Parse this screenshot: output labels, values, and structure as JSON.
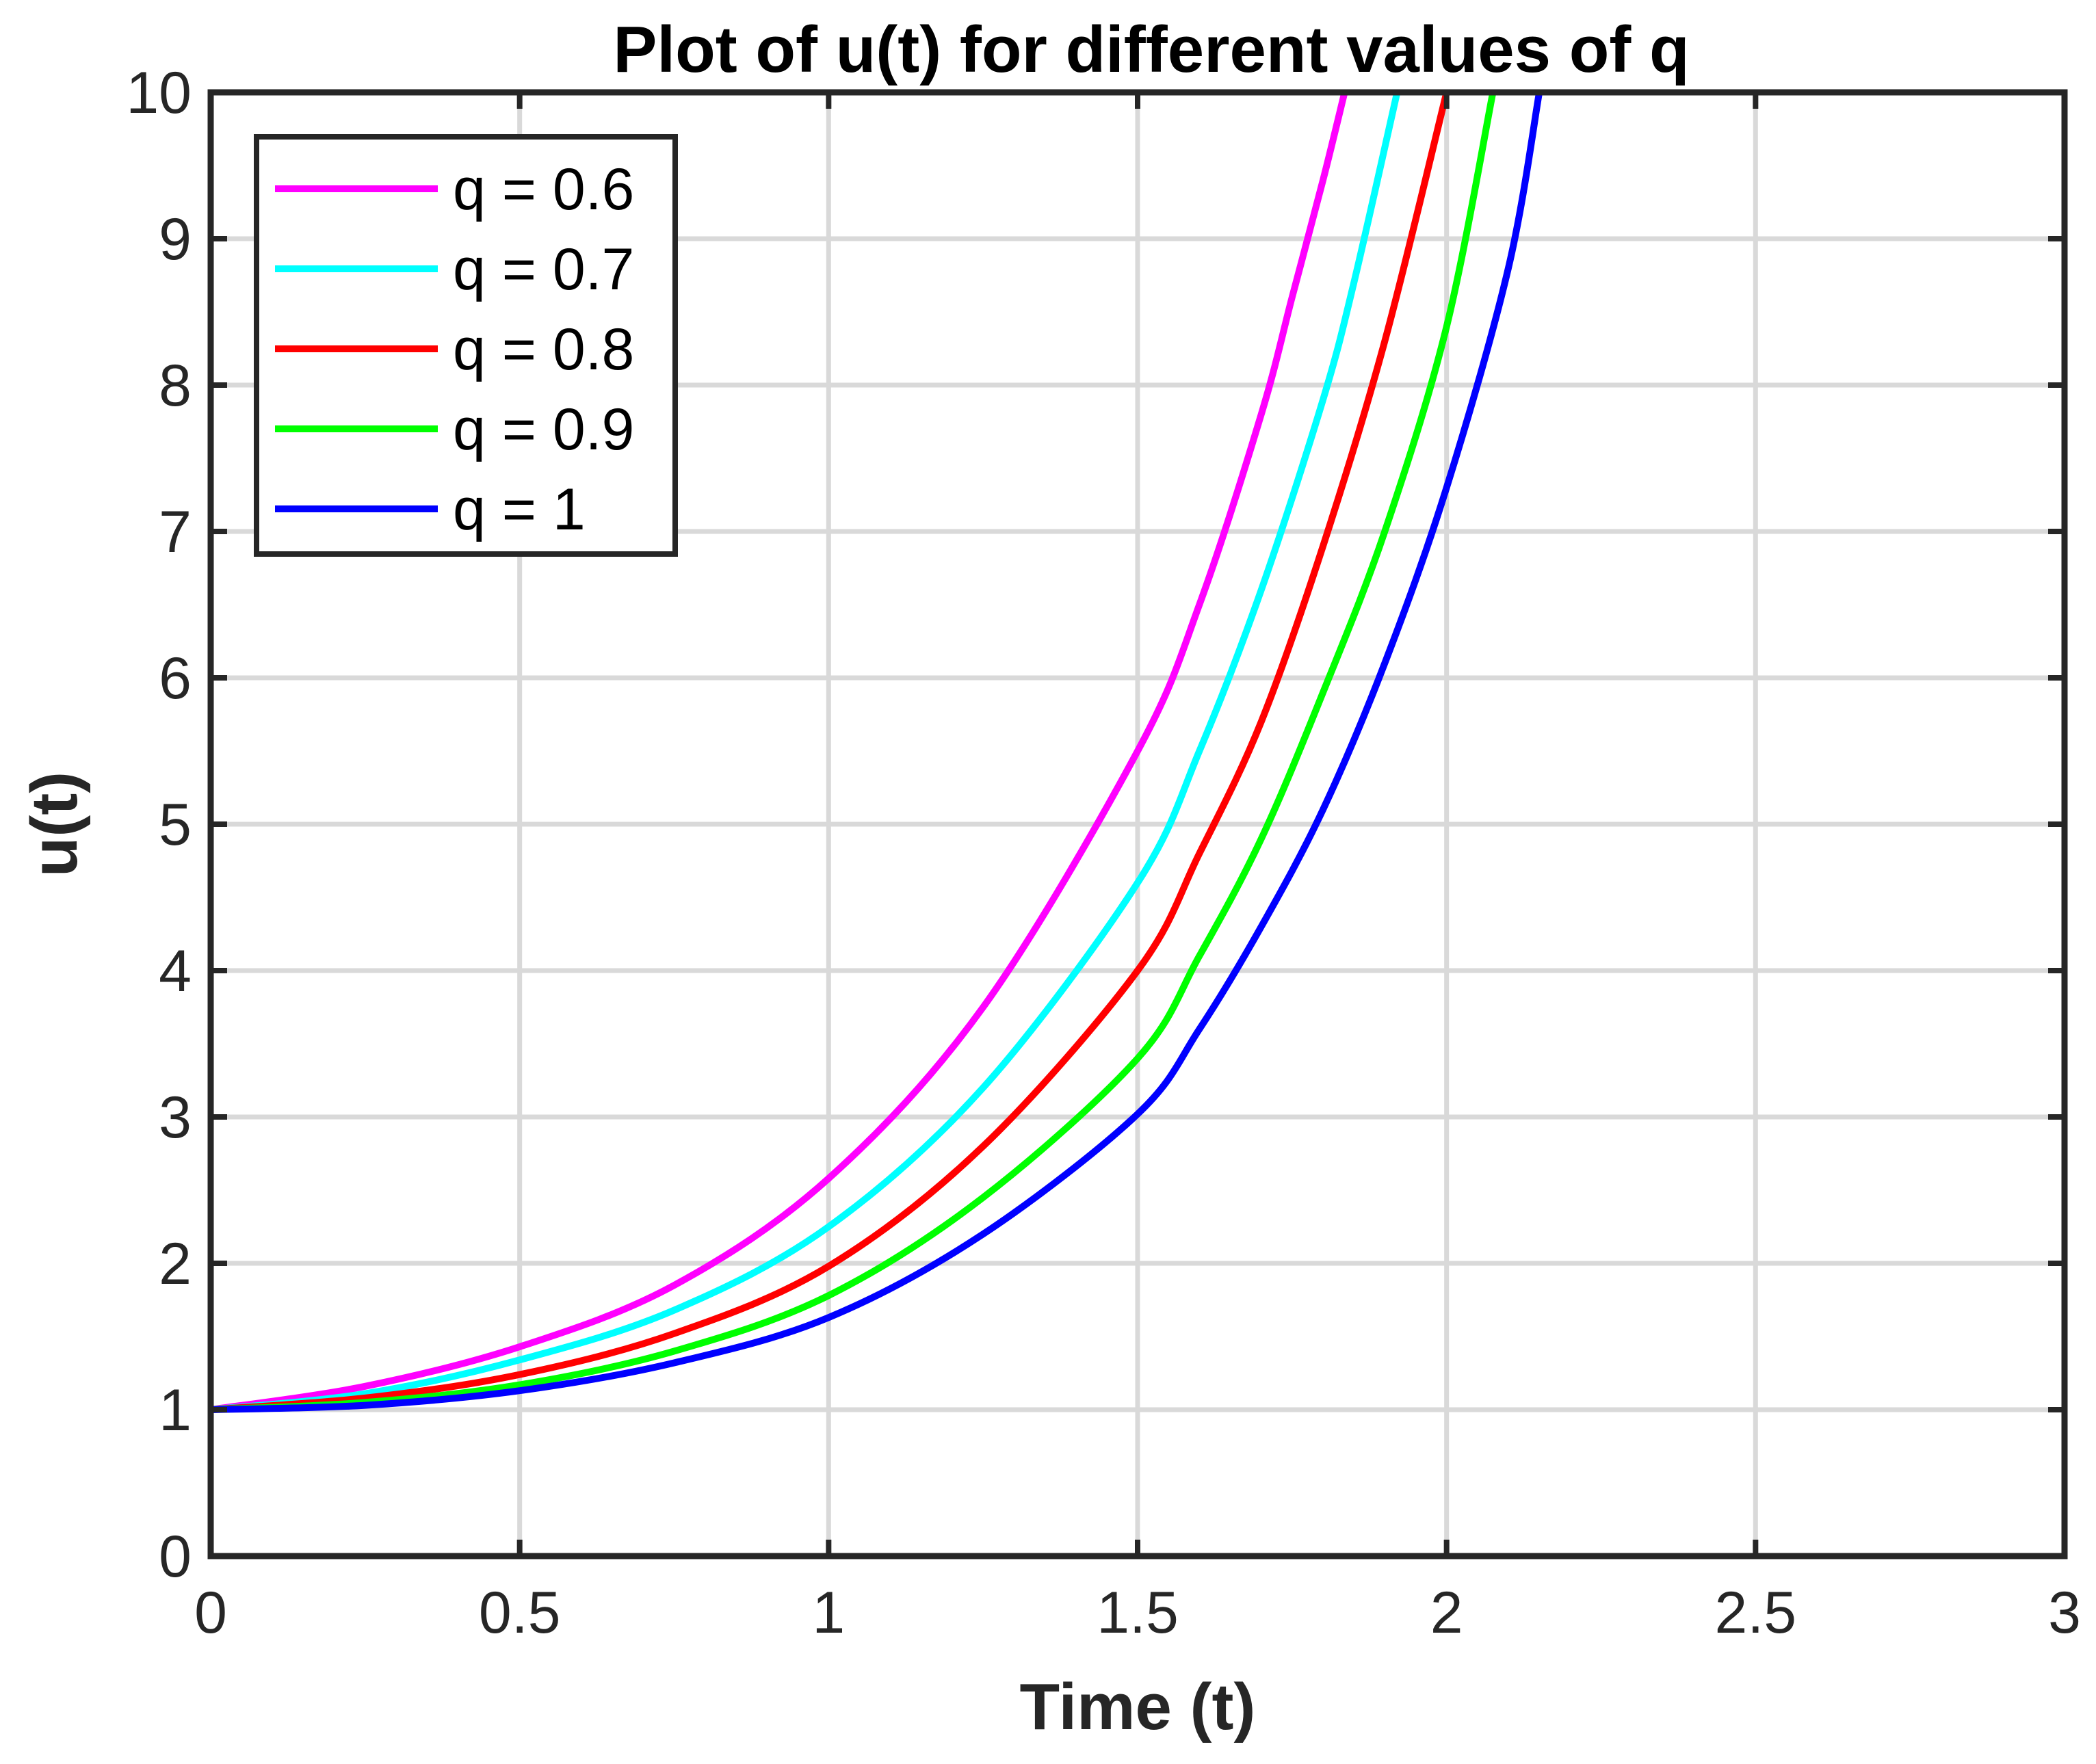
{
  "chart_data": {
    "type": "line",
    "title": "Plot of u(t) for different values of q",
    "xlabel": "Time (t)",
    "ylabel": "u(t)",
    "xlim": [
      0,
      3
    ],
    "ylim": [
      0,
      10
    ],
    "xticks": [
      0,
      0.5,
      1,
      1.5,
      2,
      2.5,
      3
    ],
    "xtick_labels": [
      "0",
      "0.5",
      "1",
      "1.5",
      "2",
      "2.5",
      "3"
    ],
    "yticks": [
      0,
      1,
      2,
      3,
      4,
      5,
      6,
      7,
      8,
      9,
      10
    ],
    "ytick_labels": [
      "0",
      "1",
      "2",
      "3",
      "4",
      "5",
      "6",
      "7",
      "8",
      "9",
      "10"
    ],
    "grid": true,
    "legend_position": "top-left",
    "series": [
      {
        "name": "q = 0.6",
        "color": "#ff00ff",
        "x": [
          0,
          0.25,
          0.5,
          0.75,
          1.0,
          1.25,
          1.5,
          1.6,
          1.7,
          1.75,
          1.8,
          1.835
        ],
        "y": [
          1.0,
          1.16,
          1.43,
          1.85,
          2.58,
          3.75,
          5.5,
          6.5,
          7.8,
          8.6,
          9.4,
          10.0
        ]
      },
      {
        "name": "q = 0.7",
        "color": "#00ffff",
        "x": [
          0,
          0.25,
          0.5,
          0.75,
          1.0,
          1.25,
          1.5,
          1.6,
          1.7,
          1.8,
          1.85,
          1.92
        ],
        "y": [
          1.0,
          1.11,
          1.34,
          1.68,
          2.25,
          3.2,
          4.6,
          5.5,
          6.6,
          7.9,
          8.7,
          10.0
        ]
      },
      {
        "name": "q = 0.8",
        "color": "#ff0000",
        "x": [
          0,
          0.25,
          0.5,
          0.75,
          1.0,
          1.25,
          1.5,
          1.6,
          1.7,
          1.8,
          1.9,
          2.0
        ],
        "y": [
          1.0,
          1.08,
          1.24,
          1.52,
          1.98,
          2.8,
          4.0,
          4.8,
          5.7,
          6.9,
          8.3,
          10.0
        ]
      },
      {
        "name": "q = 0.9",
        "color": "#00ff00",
        "x": [
          0,
          0.25,
          0.5,
          0.75,
          1.0,
          1.25,
          1.5,
          1.6,
          1.7,
          1.8,
          1.9,
          2.0,
          2.075
        ],
        "y": [
          1.0,
          1.05,
          1.17,
          1.4,
          1.78,
          2.45,
          3.4,
          4.1,
          4.9,
          5.9,
          7.0,
          8.4,
          10.0
        ]
      },
      {
        "name": "q = 1",
        "color": "#0000ff",
        "x": [
          0,
          0.25,
          0.5,
          0.75,
          1.0,
          1.25,
          1.5,
          1.6,
          1.7,
          1.8,
          1.9,
          2.0,
          2.1,
          2.15
        ],
        "y": [
          1.0,
          1.03,
          1.13,
          1.32,
          1.63,
          2.2,
          3.02,
          3.6,
          4.3,
          5.1,
          6.1,
          7.3,
          8.8,
          10.0
        ]
      }
    ]
  }
}
